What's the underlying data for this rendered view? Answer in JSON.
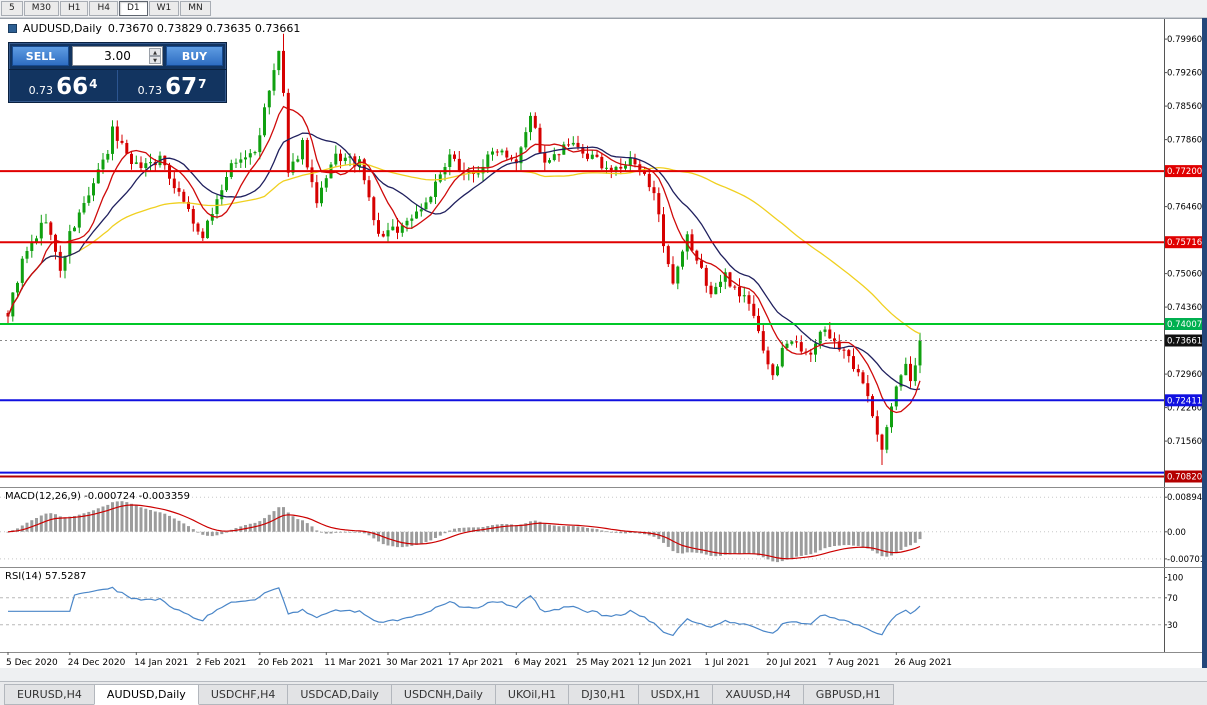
{
  "window": {
    "timeframe_buttons": [
      {
        "label": "5",
        "active": false
      },
      {
        "label": "M30",
        "active": false
      },
      {
        "label": "H1",
        "active": false
      },
      {
        "label": "H4",
        "active": false
      },
      {
        "label": "D1",
        "active": true
      },
      {
        "label": "W1",
        "active": false
      },
      {
        "label": "MN",
        "active": false
      }
    ]
  },
  "chart_header": {
    "symbol": "AUDUSD,Daily",
    "ohlc": "0.73670 0.73829 0.73635 0.73661"
  },
  "trade_panel": {
    "sell_label": "SELL",
    "buy_label": "BUY",
    "volume": "3.00",
    "sell_price": {
      "prefix": "0.73",
      "big": "66",
      "sup": "4"
    },
    "buy_price": {
      "prefix": "0.73",
      "big": "67",
      "sup": "7"
    }
  },
  "scrollbar": {
    "left": "◄",
    "right": "►"
  },
  "tabs": {
    "items": [
      {
        "label": "EURUSD,H4",
        "active": false
      },
      {
        "label": "AUDUSD,Daily",
        "active": true
      },
      {
        "label": "USDCHF,H4",
        "active": false
      },
      {
        "label": "USDCAD,Daily",
        "active": false
      },
      {
        "label": "USDCNH,Daily",
        "active": false
      },
      {
        "label": "UKOil,H1",
        "active": false
      },
      {
        "label": "DJ30,H1",
        "active": false
      },
      {
        "label": "USDX,H1",
        "active": false
      },
      {
        "label": "XAUUSD,H4",
        "active": false
      },
      {
        "label": "GBPUSD,H1",
        "active": false
      }
    ]
  },
  "chart_data": {
    "type": "candlestick",
    "symbol": "AUDUSD",
    "timeframe": "Daily",
    "main": {
      "bar_count": 193,
      "price_min": 0.706,
      "price_max": 0.804,
      "last_close": 0.73661,
      "candle_up": "#10a010",
      "candle_down": "#d60000",
      "anchor_closes": [
        [
          0,
          0.7423
        ],
        [
          3,
          0.753
        ],
        [
          8,
          0.7621
        ],
        [
          11,
          0.751
        ],
        [
          13,
          0.7585
        ],
        [
          18,
          0.7694
        ],
        [
          21,
          0.7757
        ],
        [
          22,
          0.7805
        ],
        [
          27,
          0.773
        ],
        [
          32,
          0.7745
        ],
        [
          37,
          0.766
        ],
        [
          41,
          0.757
        ],
        [
          42,
          0.7615
        ],
        [
          47,
          0.773
        ],
        [
          52,
          0.776
        ],
        [
          57,
          0.797
        ],
        [
          58,
          0.788
        ],
        [
          59,
          0.7706
        ],
        [
          62,
          0.778
        ],
        [
          65,
          0.765
        ],
        [
          69,
          0.775
        ],
        [
          74,
          0.7735
        ],
        [
          78,
          0.7583
        ],
        [
          83,
          0.7605
        ],
        [
          88,
          0.7655
        ],
        [
          93,
          0.7745
        ],
        [
          98,
          0.771
        ],
        [
          103,
          0.777
        ],
        [
          107,
          0.7745
        ],
        [
          110,
          0.784
        ],
        [
          113,
          0.773
        ],
        [
          118,
          0.7775
        ],
        [
          123,
          0.7745
        ],
        [
          128,
          0.772
        ],
        [
          131,
          0.774
        ],
        [
          136,
          0.7685
        ],
        [
          138,
          0.7555
        ],
        [
          140,
          0.7478
        ],
        [
          143,
          0.758
        ],
        [
          148,
          0.7465
        ],
        [
          151,
          0.75
        ],
        [
          156,
          0.7445
        ],
        [
          161,
          0.729
        ],
        [
          164,
          0.7368
        ],
        [
          169,
          0.7344
        ],
        [
          172,
          0.739
        ],
        [
          176,
          0.734
        ],
        [
          181,
          0.7258
        ],
        [
          184,
          0.7135
        ],
        [
          187,
          0.7272
        ],
        [
          189,
          0.731
        ],
        [
          190,
          0.729
        ],
        [
          191,
          0.7318
        ],
        [
          192,
          0.73661
        ]
      ],
      "extreme_overrides": [
        [
          22,
          "high",
          0.782
        ],
        [
          58,
          "high",
          0.8007
        ],
        [
          184,
          "low",
          0.7106
        ]
      ],
      "ticks": [
        0.7996,
        0.7926,
        0.7856,
        0.7786,
        0.7716,
        0.7646,
        0.7576,
        0.7506,
        0.7436,
        0.7366,
        0.7296,
        0.7226,
        0.7156,
        0.7086
      ],
      "hlines": [
        {
          "price": 0.772,
          "color": "#e00000",
          "label": true
        },
        {
          "price": 0.75716,
          "color": "#e00000",
          "label": true
        },
        {
          "price": 0.74007,
          "color": "#00c828",
          "label": true,
          "box": "#00b050"
        },
        {
          "price": 0.72411,
          "color": "#1010e0",
          "label": true
        },
        {
          "price": 0.709,
          "color": "#1010e0",
          "label": false
        },
        {
          "price": 0.7082,
          "color": "#b40000",
          "label": true
        }
      ],
      "bid": {
        "price": 0.73661,
        "color": "#101010"
      },
      "moving_averages": [
        {
          "period": 55,
          "color": "#f0d020"
        },
        {
          "period": 16,
          "color": "#20205e"
        },
        {
          "period": 8,
          "color": "#cf0a0a"
        }
      ]
    },
    "macd": {
      "label": "MACD(12,26,9)",
      "values_text": "-0.000724 -0.003359",
      "fast": 12,
      "slow": 26,
      "signal": 9,
      "v_min": -0.0086,
      "v_max": 0.0108,
      "histogram_color": "#9c9c9c",
      "signal_color": "#cc0000",
      "axis_labels": [
        {
          "text": "0.00894",
          "v": 0.00894
        },
        {
          "text": "0.00",
          "v": 0
        },
        {
          "text": "-0.00701",
          "v": -0.00701
        }
      ]
    },
    "rsi": {
      "label": "RSI(14)",
      "value_text": "57.5287",
      "period": 14,
      "color": "#4a86c8",
      "levels": [
        70,
        30
      ],
      "axis_labels": [
        {
          "text": "100",
          "v": 100
        },
        {
          "text": "70",
          "v": 70
        },
        {
          "text": "30",
          "v": 30
        }
      ]
    },
    "x_axis": {
      "labels": [
        {
          "text": "5 Dec 2020",
          "idx": 0
        },
        {
          "text": "24 Dec 2020",
          "idx": 13
        },
        {
          "text": "14 Jan 2021",
          "idx": 27
        },
        {
          "text": "2 Feb 2021",
          "idx": 40
        },
        {
          "text": "20 Feb 2021",
          "idx": 53
        },
        {
          "text": "11 Mar 2021",
          "idx": 67
        },
        {
          "text": "30 Mar 2021",
          "idx": 80
        },
        {
          "text": "17 Apr 2021",
          "idx": 93
        },
        {
          "text": "6 May 2021",
          "idx": 107
        },
        {
          "text": "25 May 2021",
          "idx": 120
        },
        {
          "text": "12 Jun 2021",
          "idx": 133
        },
        {
          "text": "1 Jul 2021",
          "idx": 147
        },
        {
          "text": "20 Jul 2021",
          "idx": 160
        },
        {
          "text": "7 Aug 2021",
          "idx": 173
        },
        {
          "text": "26 Aug 2021",
          "idx": 187
        }
      ]
    }
  }
}
